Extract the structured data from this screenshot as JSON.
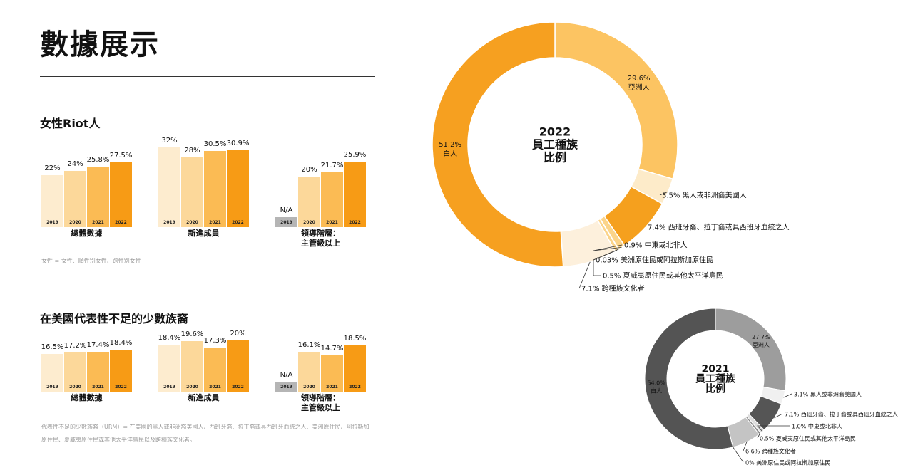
{
  "page": {
    "title": "數據展示",
    "colors": {
      "y2019": "#fdeccf",
      "y2020": "#fcd89a",
      "y2021": "#fbbb54",
      "y2022": "#f79b15",
      "na": "#b5b5b5"
    }
  },
  "women": {
    "heading": "女性Riot人",
    "note": "女性 = 女性、順性別女性、跨性別女性"
  },
  "urm": {
    "heading": "在美國代表性不足的少數族裔",
    "note_line1": "代表性不足的少數族裔（URM）= 在美國的黑人或非洲裔美國人、西班牙裔、拉丁裔或具西班牙血統之人、美洲原住民、阿拉斯加",
    "note_line2": "原住民、夏威夷原住民或其他太平洋島民以及跨種族文化者。"
  },
  "chart_data": [
    {
      "type": "bar",
      "id": "women-overall",
      "caption": "總體數據",
      "categories": [
        "2019",
        "2020",
        "2021",
        "2022"
      ],
      "values": [
        22,
        24,
        25.8,
        27.5
      ],
      "labels": [
        "22%",
        "24%",
        "25.8%",
        "27.5%"
      ]
    },
    {
      "type": "bar",
      "id": "women-new",
      "caption": "新進成員",
      "categories": [
        "2019",
        "2020",
        "2021",
        "2022"
      ],
      "values": [
        32,
        28,
        30.5,
        30.9
      ],
      "labels": [
        "32%",
        "28%",
        "30.5%",
        "30.9%"
      ]
    },
    {
      "type": "bar",
      "id": "women-leadership",
      "caption": "領導階層：\n主管級以上",
      "categories": [
        "2019",
        "2020",
        "2021",
        "2022"
      ],
      "values": [
        null,
        20,
        21.7,
        25.9
      ],
      "labels": [
        "N/A",
        "20%",
        "21.7%",
        "25.9%"
      ]
    },
    {
      "type": "bar",
      "id": "urm-overall",
      "caption": "總體數據",
      "categories": [
        "2019",
        "2020",
        "2021",
        "2022"
      ],
      "values": [
        16.5,
        17.2,
        17.4,
        18.4
      ],
      "labels": [
        "16.5%",
        "17.2%",
        "17.4%",
        "18.4%"
      ]
    },
    {
      "type": "bar",
      "id": "urm-new",
      "caption": "新進成員",
      "categories": [
        "2019",
        "2020",
        "2021",
        "2022"
      ],
      "values": [
        18.4,
        19.6,
        17.3,
        20
      ],
      "labels": [
        "18.4%",
        "19.6%",
        "17.3%",
        "20%"
      ]
    },
    {
      "type": "bar",
      "id": "urm-leadership",
      "caption": "領導階層：\n主管級以上",
      "categories": [
        "2019",
        "2020",
        "2021",
        "2022"
      ],
      "values": [
        null,
        16.1,
        14.7,
        18.5
      ],
      "labels": [
        "N/A",
        "16.1%",
        "14.7%",
        "18.5%"
      ]
    },
    {
      "type": "pie",
      "id": "donut-2022",
      "center_title": [
        "2022",
        "員工種族",
        "比例"
      ],
      "slices": [
        {
          "name": "亞洲人",
          "value": 29.6,
          "label": "29.6%",
          "color": "#fcc462"
        },
        {
          "name": "黑人或非洲裔美國人",
          "value": 3.5,
          "label": "3.5% 黑人或非洲裔美國人",
          "color": "#fdebc9"
        },
        {
          "name": "西班牙裔、拉丁裔或具西班牙血統之人",
          "value": 7.4,
          "label": "7.4% 西班牙裔、拉丁裔或具西班牙血統之人",
          "color": "#f5a01e"
        },
        {
          "name": "中東或北非人",
          "value": 0.9,
          "label": "0.9% 中東或北非人",
          "color": "#fbd48a"
        },
        {
          "name": "美洲原住民或阿拉斯加原住民",
          "value": 0.03,
          "label": "0.03% 美洲原住民或阿拉斯加原住民",
          "color": "#f3a337"
        },
        {
          "name": "夏威夷原住民或其他太平洋島民",
          "value": 0.5,
          "label": "0.5% 夏威夷原住民或其他太平洋島民",
          "color": "#fbd48a"
        },
        {
          "name": "跨種族文化者",
          "value": 7.1,
          "label": "7.1% 跨種族文化者",
          "color": "#fdf0dc"
        },
        {
          "name": "白人",
          "value": 51.2,
          "label": "51.2%",
          "color": "#f6a020"
        }
      ]
    },
    {
      "type": "pie",
      "id": "donut-2021",
      "center_title": [
        "2021",
        "員工種族",
        "比例"
      ],
      "slices": [
        {
          "name": "亞洲人",
          "value": 27.7,
          "label": "27.7%",
          "color": "#9d9d9d"
        },
        {
          "name": "黑人或非洲裔美國人",
          "value": 3.1,
          "label": "3.1% 黑人或非洲裔美國人",
          "color": "#f0f0f0"
        },
        {
          "name": "西班牙裔、拉丁裔或具西班牙血統之人",
          "value": 7.1,
          "label": "7.1% 西班牙裔、拉丁裔或具西班牙血統之人",
          "color": "#555555"
        },
        {
          "name": "中東或北非人",
          "value": 1.0,
          "label": "1.0% 中東或北非人",
          "color": "#dddddd"
        },
        {
          "name": "夏威夷原住民或其他太平洋島民",
          "value": 0.5,
          "label": "0.5% 夏威夷原住民或其他太平洋島民",
          "color": "#8a8a8a"
        },
        {
          "name": "跨種族文化者",
          "value": 6.6,
          "label": "6.6% 跨種族文化者",
          "color": "#c4c4c4"
        },
        {
          "name": "美洲原住民或阿拉斯加原住民",
          "value": 0,
          "label": "0% 美洲原住民或阿拉斯加原住民",
          "color": "#555555"
        },
        {
          "name": "白人",
          "value": 54.0,
          "label": "54.0%",
          "color": "#545454"
        }
      ]
    }
  ],
  "donut_names": {
    "asian_2022": "亞洲人",
    "white_2022": "白人",
    "asian_2021": "亞洲人",
    "white_2021": "白人"
  }
}
